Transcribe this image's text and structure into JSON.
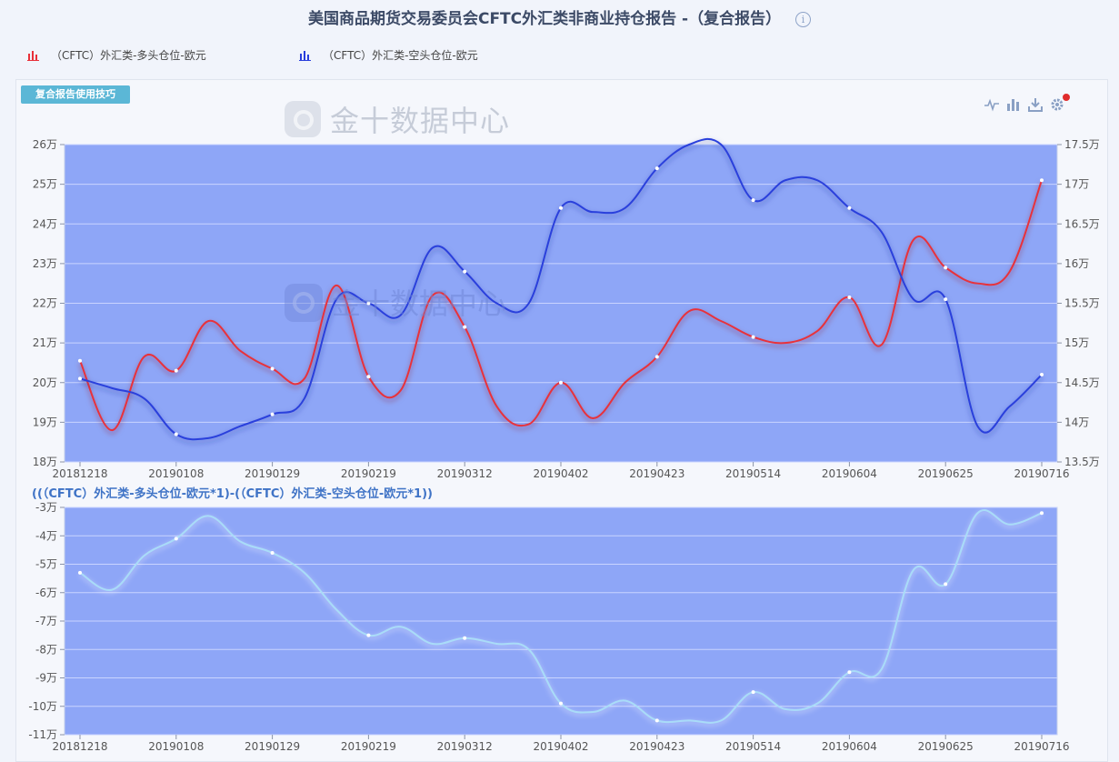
{
  "title": "美国商品期货交易委员会CFTC外汇类非商业持仓报告 -（复合报告）",
  "info_icon": "info-icon",
  "legend": [
    {
      "label": "（CFTC）外汇类-多头仓位-欧元",
      "color": "#e8303a",
      "icon": "bar-chart-icon"
    },
    {
      "label": "（CFTC）外汇类-空头仓位-欧元",
      "color": "#2a3fdc",
      "icon": "bar-chart-icon"
    }
  ],
  "tips_button": "复合报告使用技巧",
  "watermark": "金十数据中心",
  "toolbar": [
    "line-chart-icon",
    "bar-chart-icon",
    "download-icon",
    "gear-icon"
  ],
  "colors": {
    "plot_bg": "#8ea6f7",
    "long": "#e8303a",
    "short": "#2a3fdc",
    "diff": "#a9dcf8"
  },
  "formula": "((（CFTC）外汇类-多头仓位-欧元*1)-(（CFTC）外汇类-空头仓位-欧元*1))",
  "chart_data": [
    {
      "type": "line",
      "x_labels": [
        "20181218",
        "20190108",
        "20190129",
        "20190219",
        "20190312",
        "20190402",
        "20190423",
        "20190514",
        "20190604",
        "20190625",
        "20190716"
      ],
      "y_left": {
        "ylim": [
          18,
          26
        ],
        "ticks": [
          "18万",
          "19万",
          "20万",
          "21万",
          "22万",
          "23万",
          "24万",
          "25万",
          "26万"
        ]
      },
      "y_right": {
        "ylim": [
          13.5,
          17.5
        ],
        "ticks": [
          "13.5万",
          "14万",
          "14.5万",
          "15万",
          "15.5万",
          "16万",
          "16.5万",
          "17万",
          "17.5万"
        ]
      },
      "series": [
        {
          "name": "（CFTC）外汇类-多头仓位-欧元",
          "axis": "left",
          "values": [
            20.55,
            18.8,
            20.65,
            20.3,
            21.55,
            20.8,
            20.35,
            20.1,
            22.45,
            20.15,
            19.8,
            22.2,
            21.4,
            19.4,
            18.95,
            20.0,
            19.1,
            20.0,
            20.65,
            21.8,
            21.55,
            21.15,
            21.0,
            21.3,
            22.15,
            20.95,
            23.6,
            22.9,
            22.5,
            22.8,
            25.1
          ]
        },
        {
          "name": "（CFTC）外汇类-空头仓位-欧元",
          "axis": "right",
          "values": [
            14.55,
            14.43,
            14.3,
            13.85,
            13.8,
            13.95,
            14.1,
            14.3,
            15.55,
            15.5,
            15.35,
            16.2,
            15.9,
            15.5,
            15.5,
            16.7,
            16.65,
            16.7,
            17.2,
            17.5,
            17.5,
            16.8,
            17.05,
            17.05,
            16.7,
            16.4,
            15.55,
            15.55,
            13.95,
            14.2,
            14.6
          ]
        }
      ]
    },
    {
      "type": "line",
      "x_labels": [
        "20181218",
        "20190108",
        "20190129",
        "20190219",
        "20190312",
        "20190402",
        "20190423",
        "20190514",
        "20190604",
        "20190625",
        "20190716"
      ],
      "ylim": [
        -11,
        -3
      ],
      "ticks": [
        "-11万",
        "-10万",
        "-9万",
        "-8万",
        "-7万",
        "-6万",
        "-5万",
        "-4万",
        "-3万"
      ],
      "series": [
        {
          "name": "",
          "values": [
            -5.3,
            -5.9,
            -4.7,
            -4.1,
            -3.3,
            -4.2,
            -4.6,
            -5.3,
            -6.6,
            -7.5,
            -7.2,
            -7.8,
            -7.6,
            -7.8,
            -8.0,
            -9.9,
            -10.2,
            -9.8,
            -10.5,
            -10.5,
            -10.5,
            -9.5,
            -10.1,
            -9.9,
            -8.8,
            -8.7,
            -5.2,
            -5.7,
            -3.2,
            -3.6,
            -3.2
          ]
        }
      ]
    }
  ]
}
